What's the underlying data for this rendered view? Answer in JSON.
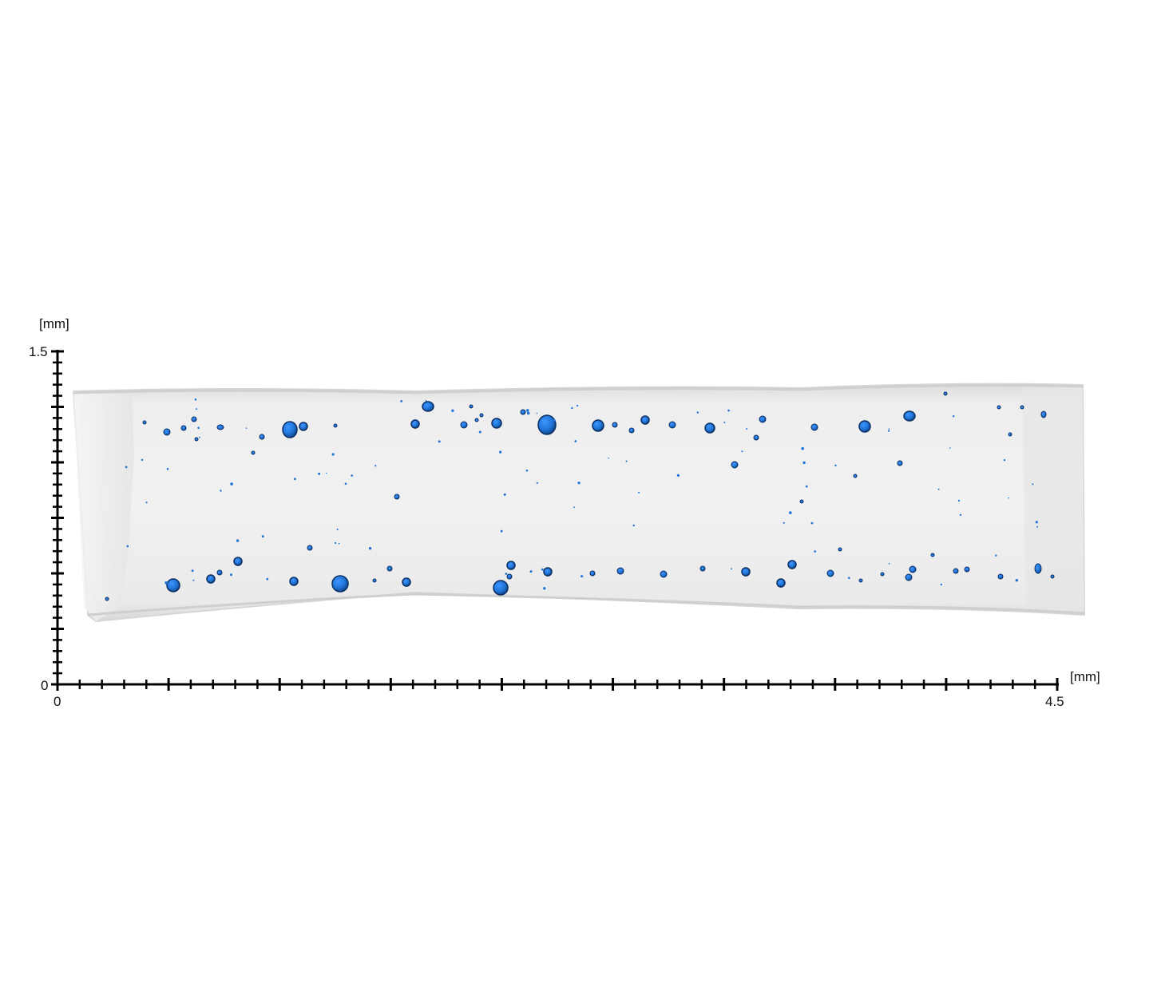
{
  "figure": {
    "description_type": "ct-volume-render-with-scale",
    "x_axis": {
      "unit_label": "[mm]",
      "min": 0,
      "max": 4.5,
      "min_label": "0",
      "max_label": "4.5",
      "minor_ticks": 45,
      "major_every": 5
    },
    "y_axis": {
      "unit_label": "[mm]",
      "min": 0,
      "max": 1.5,
      "min_label": "0",
      "max_label": "1.5",
      "minor_ticks": 30,
      "major_every": 5
    },
    "colors": {
      "pore": "#1f73d6",
      "pore_edge": "#0b2f63",
      "sample": "#ececec",
      "sample_edge": "#d2d2d2",
      "axis": "#000000"
    }
  }
}
